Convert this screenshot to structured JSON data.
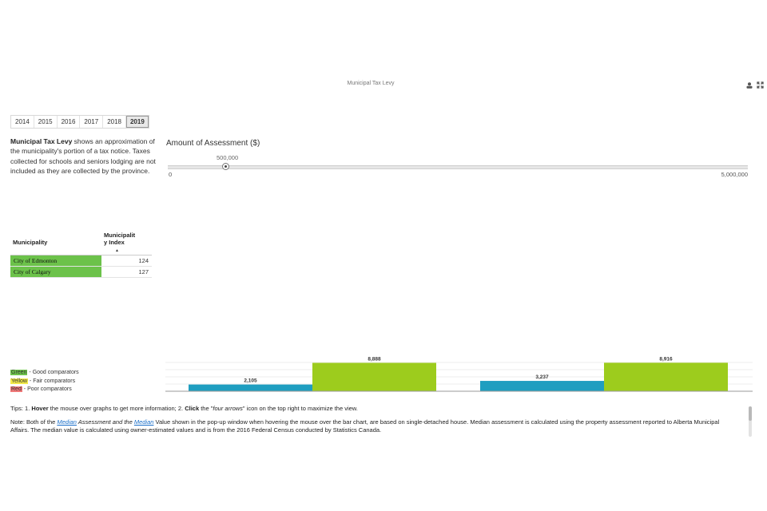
{
  "page": {
    "title": "Municipal Tax Levy"
  },
  "header_icons": [
    {
      "name": "person-icon",
      "glyph": "👤"
    },
    {
      "name": "four-arrows-icon",
      "glyph": "⤢"
    }
  ],
  "years": [
    "2014",
    "2015",
    "2016",
    "2017",
    "2018",
    "2019"
  ],
  "selected_year": "2019",
  "description": {
    "bold": "Municipal Tax Levy",
    "text": " shows an approximation of the municipality's portion of a tax notice. Taxes collected for schools and seniors lodging are not included as they are collected by the province."
  },
  "slider": {
    "label": "Amount of Assessment ($)",
    "value_label": "500,000",
    "value": 500000,
    "min": 0,
    "max": 5000000,
    "min_label": "0",
    "max_label": "5,000,000"
  },
  "table": {
    "headers": [
      "Municipality",
      "Municipalit y Index"
    ],
    "rows": [
      {
        "name": "City of Edmonton",
        "index": "124"
      },
      {
        "name": "City of Calgary",
        "index": "127"
      }
    ],
    "row_color": "#6cc24a"
  },
  "legend": [
    {
      "swatch": "Green",
      "text": " - Good comparators",
      "color": "#6cc24a"
    },
    {
      "swatch": "Yellow",
      "text": " - Fair comparators",
      "color": "#f2ea4a"
    },
    {
      "swatch": "Red",
      "text": " - Poor comparators",
      "color": "#f07878"
    }
  ],
  "chart_data": {
    "type": "bar",
    "ylim": [
      0,
      9000
    ],
    "groups": [
      {
        "bars": [
          {
            "value": 2105,
            "label": "2,105",
            "color": "#1f9ec0"
          },
          {
            "value": 8888,
            "label": "8,888",
            "color": "#9dcc1d"
          }
        ]
      },
      {
        "bars": [
          {
            "value": 3237,
            "label": "3,237",
            "color": "#1f9ec0"
          },
          {
            "value": 8916,
            "label": "8,916",
            "color": "#9dcc1d"
          }
        ]
      }
    ]
  },
  "tips": {
    "prefix": "Tips: 1. ",
    "hover": "Hover",
    "mid": " the mouse over graphs to get more information; 2. ",
    "click": "Click",
    "mid2": " the \"",
    "icon_ref": "four arrows",
    "end": "\" icon on the top right to maximize the view."
  },
  "note": {
    "p1": "Note: Both of the ",
    "link1": "Median",
    "p2": " Assessment and the ",
    "link2": "Median",
    "p3": " Value shown in the pop-up window when hovering the mouse over the bar chart, are based on single-detached house. Median assessment is calculated using the property assessment reported to Alberta Municipal Affairs. The median value is calculated using owner-estimated values and is from the 2016 Federal Census conducted by Statistics Canada."
  }
}
